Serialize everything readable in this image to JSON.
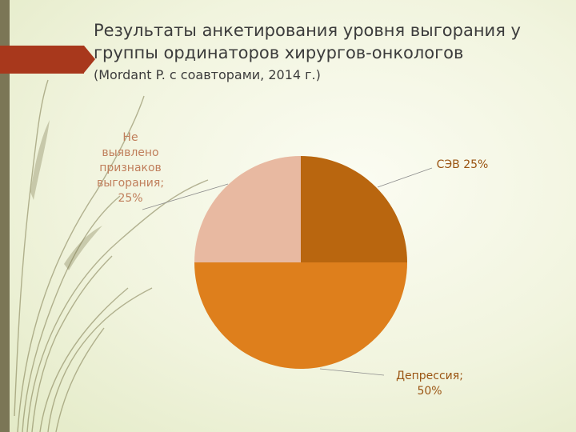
{
  "slide": {
    "title": "Результаты анкетирования уровня выгорания у группы ординаторов хирургов-онкологов",
    "subtitle": "(Mordant P. с соавторами, 2014 г.)"
  },
  "chart_data": {
    "type": "pie",
    "slices": [
      {
        "label_lines": [
          "СЭВ 25%"
        ],
        "value": 25,
        "color": "#b9660f"
      },
      {
        "label_lines": [
          "Депрессия;",
          "50%"
        ],
        "value": 50,
        "color": "#de7f1c"
      },
      {
        "label_lines": [
          "Не",
          "выявлено",
          "признаков",
          "выгорания;",
          "25%"
        ],
        "value": 25,
        "color": "#e8b9a1"
      }
    ],
    "start_angle_deg": -90,
    "direction": "clockwise"
  }
}
